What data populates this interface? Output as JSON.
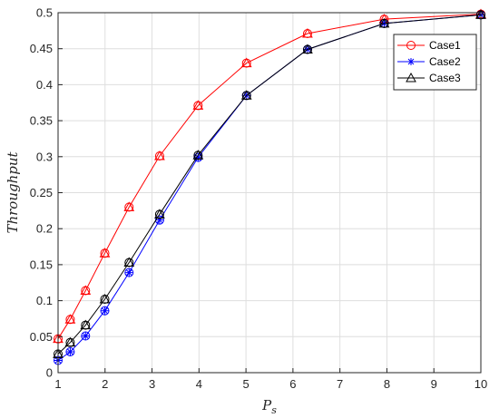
{
  "chart_data": {
    "type": "line",
    "xlabel": "P",
    "xlabel_sub": "s",
    "ylabel": "Throughput",
    "xlim": [
      1,
      10
    ],
    "ylim": [
      0,
      0.5
    ],
    "xticks": [
      1,
      2,
      3,
      4,
      5,
      6,
      7,
      8,
      9,
      10
    ],
    "yticks": [
      0,
      0.05,
      0.1,
      0.15,
      0.2,
      0.25,
      0.3,
      0.35,
      0.4,
      0.45,
      0.5
    ],
    "xtick_labels": [
      "1",
      "2",
      "3",
      "4",
      "5",
      "6",
      "7",
      "8",
      "9",
      "10"
    ],
    "ytick_labels": [
      "0",
      "0.05",
      "0.1",
      "0.15",
      "0.2",
      "0.25",
      "0.3",
      "0.35",
      "0.4",
      "0.45",
      "0.5"
    ],
    "grid": true,
    "legend_position": "top-right",
    "series": [
      {
        "name": "Case1",
        "color": "#ff0000",
        "marker": "circle",
        "x": [
          1,
          1.259,
          1.585,
          1.995,
          2.512,
          3.162,
          3.981,
          5.012,
          6.31,
          7.943,
          10
        ],
        "y": [
          0.047,
          0.074,
          0.114,
          0.166,
          0.23,
          0.301,
          0.371,
          0.43,
          0.471,
          0.491,
          0.498
        ]
      },
      {
        "name": "Case2",
        "color": "#0000ff",
        "marker": "star",
        "x": [
          1,
          1.259,
          1.585,
          1.995,
          2.512,
          3.162,
          3.981,
          5.012,
          6.31,
          7.943,
          10
        ],
        "y": [
          0.017,
          0.029,
          0.051,
          0.086,
          0.139,
          0.212,
          0.299,
          0.385,
          0.449,
          0.485,
          0.497
        ]
      },
      {
        "name": "Case3",
        "color": "#000000",
        "marker": "triangle",
        "x": [
          1,
          1.259,
          1.585,
          1.995,
          2.512,
          3.162,
          3.981,
          5.012,
          6.31,
          7.943,
          10
        ],
        "y": [
          0.026,
          0.042,
          0.066,
          0.102,
          0.153,
          0.22,
          0.302,
          0.385,
          0.449,
          0.485,
          0.497
        ]
      }
    ],
    "overlay_markers": [
      {
        "series": "Case1",
        "marker": "triangle",
        "color": "#ff0000"
      },
      {
        "series": "Case2",
        "marker": "circle",
        "color": "#0000ff"
      },
      {
        "series": "Case3",
        "marker": "circle",
        "color": "#000000"
      }
    ],
    "legend_entry_colors": [
      "#ff0000",
      "#0000ff",
      "#000000"
    ],
    "legend_entry_markers": [
      "circle",
      "star",
      "triangle"
    ]
  }
}
